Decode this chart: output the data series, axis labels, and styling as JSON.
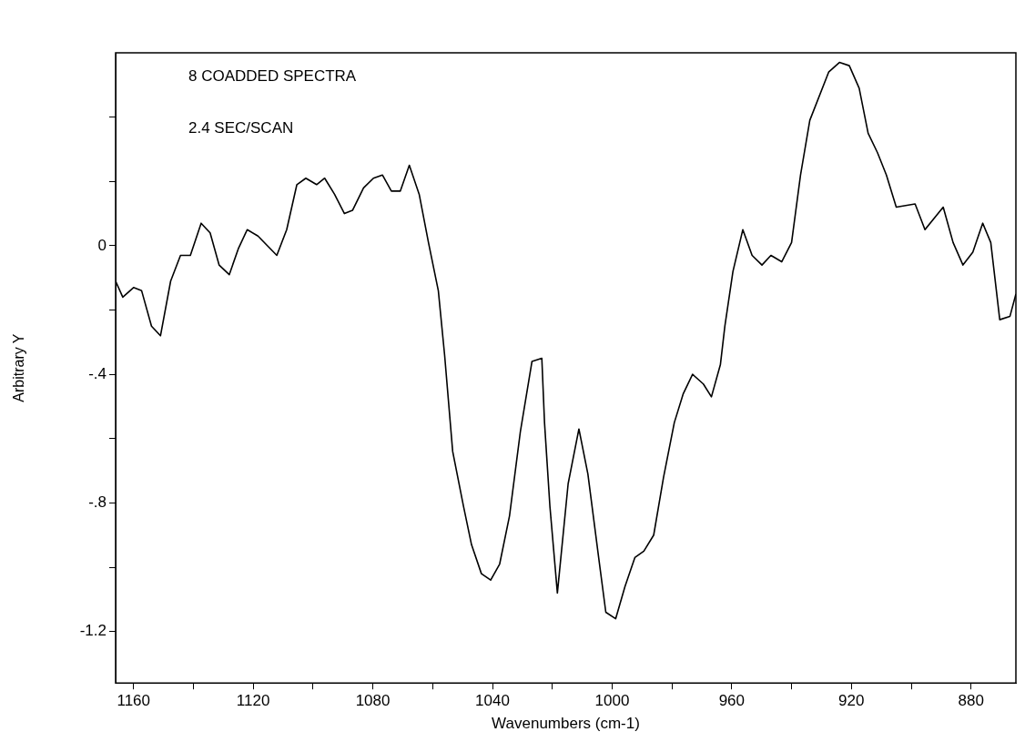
{
  "chart_data": {
    "type": "line",
    "xlabel": "Wavenumbers (cm-1)",
    "ylabel": "Arbitrary Y",
    "annotations": [
      "8 COADDED SPECTRA",
      "2.4 SEC/SCAN"
    ],
    "x": [
      1166,
      1163.6,
      1160,
      1157.3,
      1154,
      1151,
      1147.6,
      1144.3,
      1141,
      1137.4,
      1134.4,
      1131.4,
      1128,
      1125,
      1122,
      1118.4,
      1112.1,
      1108.8,
      1105.4,
      1102.4,
      1098.8,
      1096.1,
      1092.8,
      1089.5,
      1086.8,
      1083.1,
      1079.8,
      1076.8,
      1073.8,
      1070.8,
      1067.8,
      1064.5,
      1061.4,
      1058.1,
      1056,
      1053.3,
      1049.7,
      1047,
      1043.7,
      1040.6,
      1037.6,
      1034.3,
      1030.7,
      1026.8,
      1023.5,
      1022.6,
      1020.8,
      1018.3,
      1014.7,
      1011.1,
      1008.1,
      1004.5,
      1002.1,
      998.8,
      995.7,
      992.4,
      989.4,
      986.1,
      982.8,
      979.2,
      976.2,
      973.1,
      969.5,
      966.8,
      963.8,
      962.3,
      959.6,
      956.3,
      953.2,
      949.9,
      946.9,
      943.3,
      940,
      937,
      933.9,
      927.6,
      924,
      920.7,
      917.4,
      914.4,
      911.3,
      908.3,
      905,
      898.7,
      895.4,
      889.3,
      886,
      882.7,
      879.4,
      876.1,
      873.4,
      870.4,
      867,
      865
    ],
    "series": [
      {
        "color": "#000000",
        "values": [
          -0.11,
          -0.16,
          -0.13,
          -0.14,
          -0.25,
          -0.28,
          -0.11,
          -0.03,
          -0.03,
          0.07,
          0.04,
          -0.06,
          -0.09,
          -0.01,
          0.05,
          0.03,
          -0.03,
          0.05,
          0.19,
          0.21,
          0.19,
          0.21,
          0.16,
          0.1,
          0.11,
          0.18,
          0.21,
          0.22,
          0.17,
          0.17,
          0.25,
          0.16,
          0.01,
          -0.14,
          -0.34,
          -0.64,
          -0.81,
          -0.93,
          -1.02,
          -1.04,
          -0.99,
          -0.84,
          -0.58,
          -0.36,
          -0.35,
          -0.55,
          -0.81,
          -1.08,
          -0.74,
          -0.57,
          -0.71,
          -0.97,
          -1.14,
          -1.16,
          -1.06,
          -0.97,
          -0.95,
          -0.9,
          -0.72,
          -0.55,
          -0.46,
          -0.4,
          -0.43,
          -0.47,
          -0.37,
          -0.25,
          -0.08,
          0.05,
          -0.03,
          -0.06,
          -0.03,
          -0.05,
          0.01,
          0.22,
          0.39,
          0.54,
          0.57,
          0.56,
          0.49,
          0.35,
          0.29,
          0.22,
          0.12,
          0.13,
          0.05,
          0.12,
          0.01,
          -0.06,
          -0.02,
          0.07,
          0.01,
          -0.23,
          -0.22,
          -0.15
        ]
      }
    ],
    "xlim": [
      1166,
      865
    ],
    "xticks": [
      1160,
      {
        "value": 1140,
        "label": null
      },
      1120,
      {
        "value": 1100,
        "label": null
      },
      1080,
      {
        "value": 1060,
        "label": null
      },
      1040,
      {
        "value": 1020,
        "label": null
      },
      1000,
      {
        "value": 980,
        "label": null
      },
      960,
      {
        "value": 940,
        "label": null
      },
      920,
      {
        "value": 900,
        "label": null
      },
      880
    ],
    "ylim": [
      -1.36,
      0.6
    ],
    "yticks": [
      {
        "value": -1.2,
        "label": "-1.2"
      },
      {
        "value": -1,
        "label": null
      },
      {
        "value": -0.8,
        "label": "-.8"
      },
      {
        "value": -0.6,
        "label": null
      },
      {
        "value": -0.4,
        "label": "-.4"
      },
      {
        "value": -0.2,
        "label": null
      },
      0,
      {
        "value": 0.2,
        "label": null
      },
      {
        "value": 0.4,
        "label": null
      }
    ],
    "grid": false,
    "legend": false,
    "marker": "none",
    "line_style": "solid"
  }
}
